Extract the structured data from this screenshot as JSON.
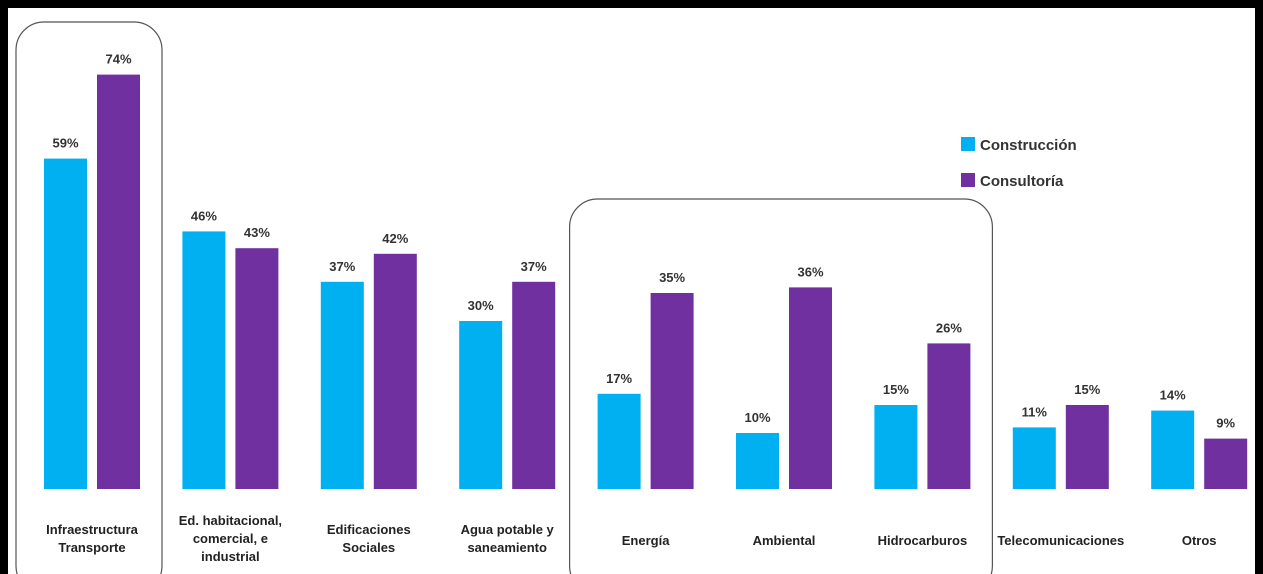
{
  "chart_data": {
    "type": "bar",
    "categories": [
      [
        "Infraestructura",
        "Transporte"
      ],
      [
        "Ed.  habitacional,",
        "comercial, e",
        "industrial"
      ],
      [
        "Edificaciones",
        "Sociales"
      ],
      [
        "Agua potable y",
        "saneamiento"
      ],
      [
        "Energía"
      ],
      [
        "Ambiental"
      ],
      [
        "Hidrocarburos"
      ],
      [
        "Telecomunicaciones"
      ],
      [
        "Otros"
      ]
    ],
    "series": [
      {
        "name": "Construcción",
        "color": "#00B0F0",
        "values": [
          59,
          46,
          37,
          30,
          17,
          10,
          15,
          11,
          14
        ],
        "labels": [
          "59%",
          "46%",
          "37%",
          "30%",
          "17%",
          "10%",
          "15%",
          "11%",
          "14%"
        ]
      },
      {
        "name": "Consultoría",
        "color": "#7030A0",
        "values": [
          74,
          43,
          42,
          37,
          35,
          36,
          26,
          15,
          9
        ],
        "labels": [
          "74%",
          "43%",
          "42%",
          "37%",
          "35%",
          "36%",
          "26%",
          "15%",
          "9%"
        ]
      }
    ],
    "ylim": [
      0,
      80
    ],
    "legend": "right",
    "highlight_groups": [
      [
        0
      ],
      [
        4,
        5,
        6
      ]
    ],
    "grid": false
  }
}
